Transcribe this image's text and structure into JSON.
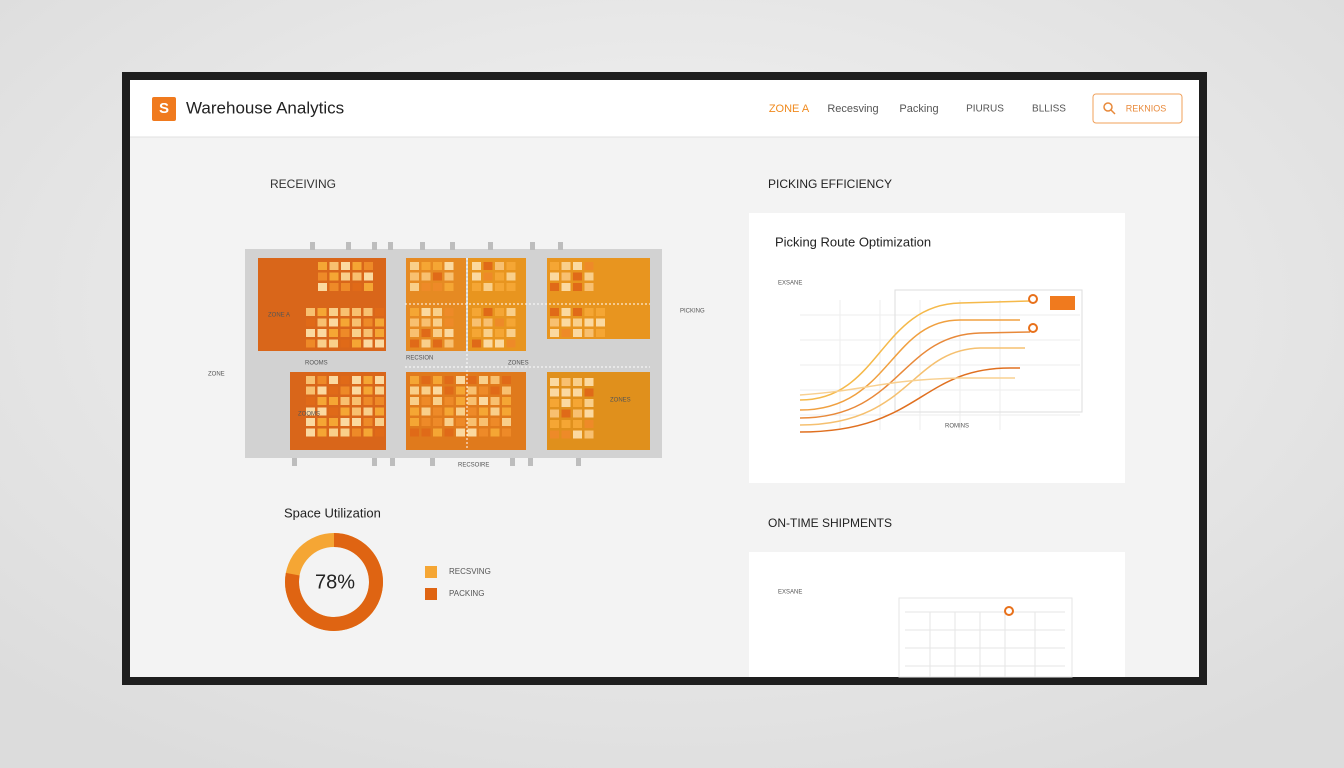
{
  "header": {
    "logo": "S",
    "title": "Warehouse Analytics",
    "nav": [
      "ZONE A",
      "Recesving",
      "Packing",
      "PIURUS",
      "BLLISS"
    ],
    "search": "REKNIOS"
  },
  "receiving": {
    "title": "RECEIVING",
    "labels": [
      "ZONE A",
      "ZONE",
      "ROOMS",
      "RECSION",
      "ZONES",
      "ZOOMS",
      "ZONES",
      "PICKING",
      "RECSOIRE"
    ]
  },
  "space_utilization": {
    "title": "Space Utilization",
    "value": 78,
    "value_label": "78%",
    "legend": [
      "RECSVING",
      "PACKING"
    ]
  },
  "picking": {
    "title": "PICKING EFFICIENCY",
    "card_title": "Picking Route Optimization",
    "axis_label": "EXSANE",
    "footer": "ROMINS"
  },
  "shipments": {
    "title": "ON-TIME SHIPMENTS",
    "axis_label": "EXSANE"
  }
}
